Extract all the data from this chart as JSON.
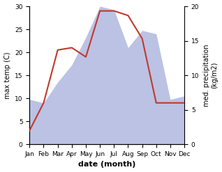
{
  "months": [
    "Jan",
    "Feb",
    "Mar",
    "Apr",
    "May",
    "Jun",
    "Jul",
    "Aug",
    "Sep",
    "Oct",
    "Nov",
    "Dec"
  ],
  "month_positions": [
    0,
    1,
    2,
    3,
    4,
    5,
    6,
    7,
    8,
    9,
    10,
    11
  ],
  "temperature": [
    3.0,
    9.0,
    20.5,
    21.0,
    19.0,
    29.0,
    29.0,
    28.0,
    23.0,
    9.0,
    9.0,
    9.0
  ],
  "precipitation": [
    6.5,
    6.0,
    9.0,
    11.5,
    15.5,
    20.0,
    19.5,
    14.0,
    16.5,
    16.0,
    6.5,
    7.0
  ],
  "temp_color": "#c0392b",
  "precip_fill_color": "#b0b8e0",
  "temp_ylim": [
    0,
    30
  ],
  "precip_ylim": [
    0,
    20
  ],
  "temp_yticks": [
    0,
    5,
    10,
    15,
    20,
    25,
    30
  ],
  "precip_yticks": [
    0,
    5,
    10,
    15,
    20
  ],
  "ylabel_left": "max temp (C)",
  "ylabel_right": "med. precipitation\n(kg/m2)",
  "xlabel": "date (month)",
  "background_color": "#ffffff",
  "label_fontsize": 7,
  "tick_fontsize": 6.5
}
